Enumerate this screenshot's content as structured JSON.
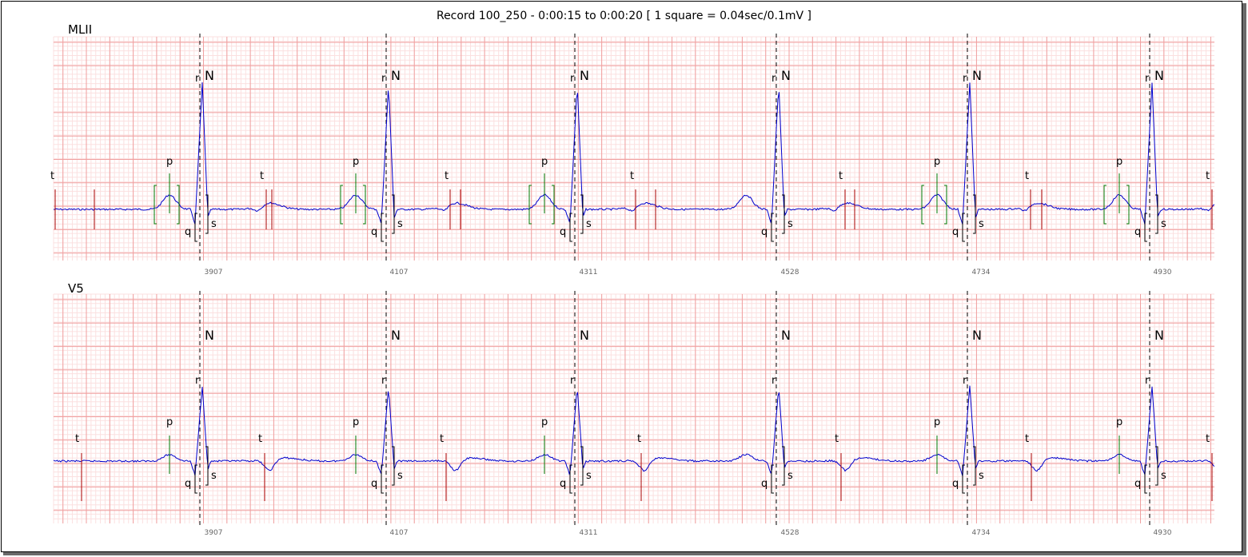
{
  "title": "Record 100_250 - 0:00:15 to 0:00:20  [ 1 square = 0.04sec/0.1mV ]",
  "colors": {
    "grid_major": "#f0a0a0",
    "grid_minor": "#fbe0e0",
    "signal": "#0000cc",
    "beat_line": "#000000",
    "p_wave": "#007700",
    "t_wave": "#aa0000"
  },
  "chart_data": {
    "type": "line",
    "title": "Record 100_250 - 0:00:15 to 0:00:20  [ 1 square = 0.04sec/0.1mV ]",
    "grid": true,
    "x_ticks": [
      "3907",
      "4107",
      "4311",
      "4528",
      "4734",
      "4930"
    ],
    "beat_label": "N",
    "wave_labels": {
      "p": "p",
      "q": "q",
      "r": "r",
      "s": "s",
      "t": "t"
    },
    "leads": [
      {
        "name": "MLII",
        "beat_r_labels": [
          "r",
          "r",
          "r",
          "r",
          "r",
          "r"
        ]
      },
      {
        "name": "V5",
        "beat_r_labels": [
          "r",
          "r",
          "r",
          "r",
          "r",
          "r"
        ]
      }
    ]
  }
}
